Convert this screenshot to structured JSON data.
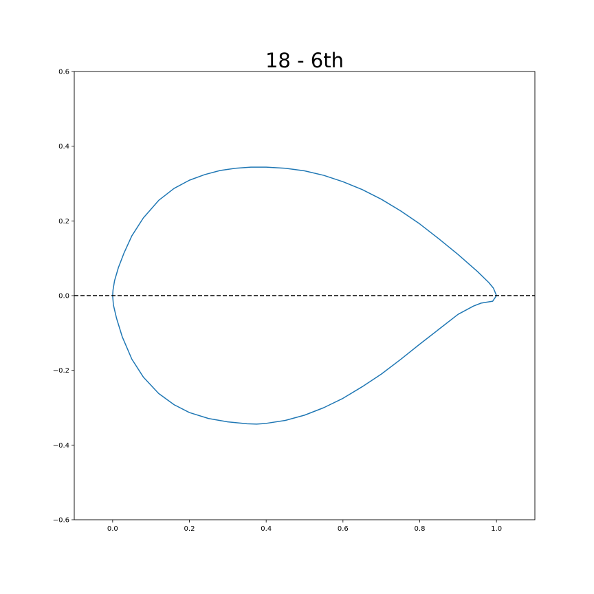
{
  "chart_data": {
    "type": "line",
    "title": "18 - 6th",
    "xlabel": "",
    "ylabel": "",
    "xlim": [
      -0.1,
      1.1
    ],
    "ylim": [
      -0.6,
      0.6
    ],
    "xticks": [
      0.0,
      0.2,
      0.4,
      0.6,
      0.8,
      1.0
    ],
    "xtick_labels": [
      "0.0",
      "0.2",
      "0.4",
      "0.6",
      "0.8",
      "1.0"
    ],
    "yticks": [
      -0.6,
      -0.4,
      -0.2,
      0.0,
      0.2,
      0.4,
      0.6
    ],
    "ytick_labels": [
      "−0.6",
      "−0.4",
      "−0.2",
      "0.0",
      "0.2",
      "0.4",
      "0.6"
    ],
    "grid": false,
    "colors": {
      "curve": "#1f77b4",
      "baseline": "#000000"
    },
    "series": [
      {
        "style": "solid",
        "x": [
          1.0,
          0.992,
          0.98,
          0.95,
          0.9,
          0.85,
          0.8,
          0.75,
          0.7,
          0.65,
          0.6,
          0.55,
          0.5,
          0.45,
          0.4,
          0.36,
          0.32,
          0.28,
          0.24,
          0.2,
          0.16,
          0.12,
          0.08,
          0.05,
          0.03,
          0.015,
          0.005,
          0.001,
          0.0,
          0.002,
          0.01,
          0.025,
          0.05,
          0.08,
          0.12,
          0.16,
          0.2,
          0.25,
          0.3,
          0.35,
          0.375,
          0.4,
          0.45,
          0.5,
          0.55,
          0.6,
          0.65,
          0.7,
          0.75,
          0.8,
          0.85,
          0.9,
          0.94,
          0.96,
          0.99,
          1.0
        ],
        "y": [
          0.0,
          0.02,
          0.035,
          0.065,
          0.11,
          0.152,
          0.192,
          0.227,
          0.258,
          0.284,
          0.305,
          0.322,
          0.334,
          0.341,
          0.344,
          0.344,
          0.341,
          0.335,
          0.324,
          0.309,
          0.287,
          0.255,
          0.208,
          0.16,
          0.115,
          0.075,
          0.04,
          0.015,
          0.0,
          -0.025,
          -0.06,
          -0.11,
          -0.17,
          -0.218,
          -0.262,
          -0.292,
          -0.313,
          -0.329,
          -0.338,
          -0.343,
          -0.344,
          -0.342,
          -0.334,
          -0.32,
          -0.3,
          -0.275,
          -0.244,
          -0.21,
          -0.171,
          -0.13,
          -0.09,
          -0.05,
          -0.028,
          -0.02,
          -0.015,
          0.0
        ]
      },
      {
        "style": "dashed",
        "x": [
          -0.1,
          1.1
        ],
        "y": [
          0.0,
          0.0
        ]
      }
    ]
  }
}
